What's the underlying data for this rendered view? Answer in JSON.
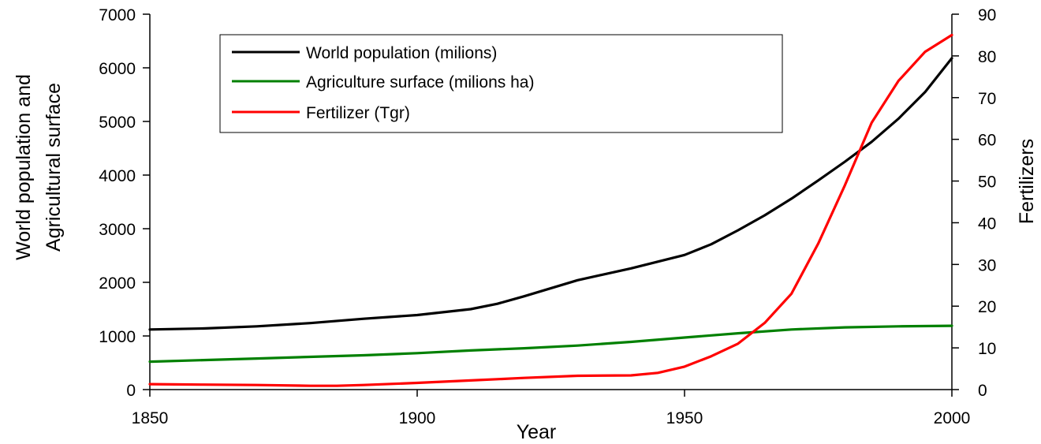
{
  "chart_data": {
    "type": "line",
    "xlabel": "Year",
    "ylabel_left": [
      "World population and",
      "Agricultural surface"
    ],
    "ylabel_right": "Fertilizers",
    "xlim": [
      1850,
      2000
    ],
    "ylim_left": [
      0,
      7000
    ],
    "ylim_right": [
      0,
      90
    ],
    "x_ticks": [
      1850,
      1900,
      1950,
      2000
    ],
    "y_left_ticks": [
      0,
      1000,
      2000,
      3000,
      4000,
      5000,
      6000,
      7000
    ],
    "y_right_ticks": [
      0,
      10,
      20,
      30,
      40,
      50,
      60,
      70,
      80,
      90
    ],
    "grid": false,
    "legend_position": "top-left",
    "series": [
      {
        "name": "World population (milions)",
        "color": "#000000",
        "axis": "left",
        "x": [
          1850,
          1860,
          1870,
          1880,
          1890,
          1900,
          1910,
          1915,
          1920,
          1930,
          1940,
          1950,
          1955,
          1960,
          1965,
          1970,
          1975,
          1980,
          1985,
          1990,
          1995,
          2000
        ],
        "y": [
          1120,
          1140,
          1180,
          1240,
          1320,
          1390,
          1500,
          1600,
          1740,
          2040,
          2260,
          2510,
          2710,
          2970,
          3250,
          3560,
          3900,
          4250,
          4620,
          5050,
          5550,
          6180
        ]
      },
      {
        "name": "Agriculture surface (milions ha)",
        "color": "#008000",
        "axis": "left",
        "x": [
          1850,
          1860,
          1870,
          1880,
          1890,
          1900,
          1910,
          1920,
          1930,
          1940,
          1950,
          1960,
          1970,
          1980,
          1990,
          2000
        ],
        "y": [
          520,
          550,
          580,
          610,
          640,
          680,
          730,
          770,
          820,
          890,
          970,
          1050,
          1120,
          1160,
          1180,
          1190
        ]
      },
      {
        "name": "Fertilizer (Tgr)",
        "color": "#ff0000",
        "axis": "right",
        "x": [
          1850,
          1860,
          1870,
          1880,
          1885,
          1890,
          1900,
          1910,
          1920,
          1930,
          1940,
          1945,
          1950,
          1955,
          1960,
          1965,
          1970,
          1975,
          1980,
          1985,
          1990,
          1995,
          2000
        ],
        "y": [
          1.3,
          1.2,
          1.1,
          0.9,
          0.9,
          1.1,
          1.6,
          2.2,
          2.8,
          3.3,
          3.4,
          4.0,
          5.5,
          8.0,
          11.0,
          16.0,
          23.0,
          35.0,
          49.0,
          64.0,
          74.0,
          81.0,
          85.0
        ]
      }
    ]
  }
}
